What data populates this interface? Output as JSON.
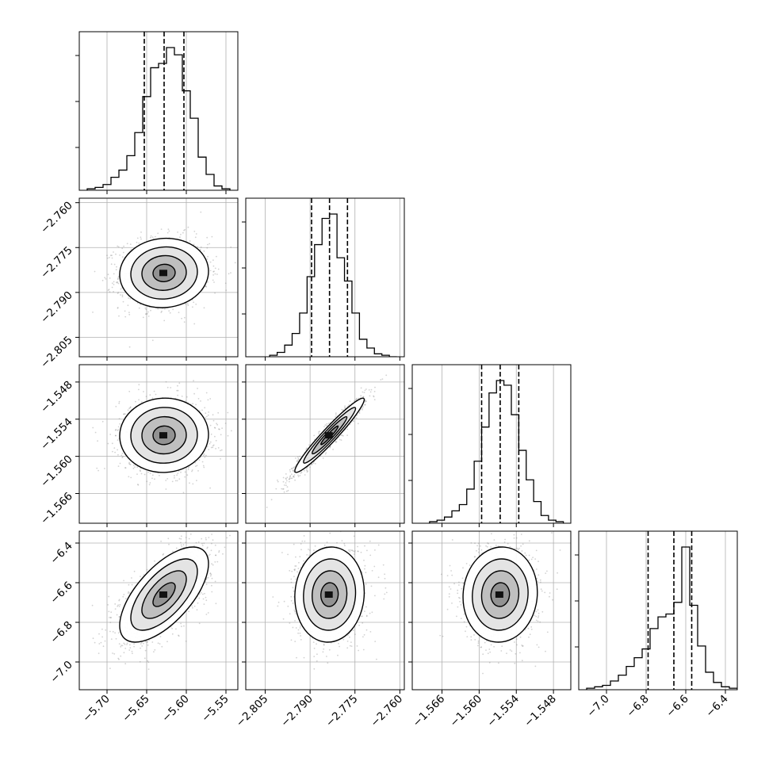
{
  "chart_data": {
    "type": "corner",
    "title": "",
    "parameters": 4,
    "colors": {
      "line": "#000000",
      "grid": "#b0b0b0",
      "scatter": "#7f7f7f"
    },
    "grid": true,
    "quantiles": [
      0.16,
      0.5,
      0.84
    ],
    "variables": [
      {
        "index": 0,
        "range": [
          -5.735,
          -5.535
        ],
        "ticks": [
          -5.7,
          -5.65,
          -5.6,
          -5.55
        ],
        "tick_labels": [
          "−5.70",
          "−5.65",
          "−5.60",
          "−5.55"
        ],
        "quantile_values": [
          -5.653,
          -5.628,
          -5.603
        ],
        "hist": {
          "bin_edges": [
            -5.725,
            -5.715,
            -5.705,
            -5.695,
            -5.685,
            -5.675,
            -5.665,
            -5.655,
            -5.645,
            -5.635,
            -5.625,
            -5.615,
            -5.605,
            -5.595,
            -5.585,
            -5.575,
            -5.565,
            -5.555,
            -5.545
          ],
          "counts": [
            1,
            2,
            4,
            9,
            14,
            24,
            40,
            65,
            85,
            88,
            99,
            94,
            69,
            50,
            23,
            11,
            3,
            1
          ]
        }
      },
      {
        "index": 1,
        "range": [
          -2.8115,
          -2.7585
        ],
        "ticks": [
          -2.805,
          -2.79,
          -2.775,
          -2.76
        ],
        "tick_labels": [
          "−2.805",
          "−2.790",
          "−2.775",
          "−2.760"
        ],
        "quantile_values": [
          -2.7895,
          -2.7835,
          -2.7775
        ],
        "hist": {
          "bin_edges": [
            -2.8035,
            -2.801,
            -2.7985,
            -2.796,
            -2.7935,
            -2.791,
            -2.7885,
            -2.786,
            -2.7835,
            -2.781,
            -2.7785,
            -2.776,
            -2.7735,
            -2.771,
            -2.7685,
            -2.766,
            -2.7635,
            -2.761
          ],
          "counts": [
            1,
            3,
            8,
            16,
            30,
            55,
            77,
            95,
            98,
            68,
            52,
            30,
            12,
            6,
            2,
            1,
            0
          ]
        }
      },
      {
        "index": 2,
        "range": [
          -1.5708,
          -1.5452
        ],
        "ticks": [
          -1.566,
          -1.56,
          -1.554,
          -1.548
        ],
        "tick_labels": [
          "−1.566",
          "−1.560",
          "−1.554",
          "−1.548"
        ],
        "quantile_values": [
          -1.5596,
          -1.5566,
          -1.5536
        ],
        "hist": {
          "bin_edges": [
            -1.568,
            -1.5668,
            -1.5656,
            -1.5644,
            -1.5632,
            -1.562,
            -1.5608,
            -1.5596,
            -1.5584,
            -1.5572,
            -1.556,
            -1.5548,
            -1.5536,
            -1.5524,
            -1.5512,
            -1.55,
            -1.5488,
            -1.5476,
            -1.5464
          ],
          "counts": [
            1,
            2,
            4,
            8,
            12,
            22,
            40,
            62,
            84,
            92,
            89,
            70,
            47,
            28,
            14,
            5,
            2,
            1
          ]
        }
      },
      {
        "index": 3,
        "range": [
          -7.14,
          -6.34
        ],
        "ticks": [
          -7.0,
          -6.8,
          -6.6,
          -6.4
        ],
        "tick_labels": [
          "−7.0",
          "−6.8",
          "−6.6",
          "−6.4"
        ],
        "quantile_values": [
          -6.79,
          -6.66,
          -6.57
        ],
        "hist": {
          "bin_edges": [
            -7.1,
            -7.06,
            -7.02,
            -6.98,
            -6.94,
            -6.9,
            -6.86,
            -6.82,
            -6.78,
            -6.74,
            -6.7,
            -6.66,
            -6.62,
            -6.58,
            -6.54,
            -6.5,
            -6.46,
            -6.42,
            -6.38,
            -6.34
          ],
          "counts": [
            1,
            2,
            3,
            6,
            10,
            16,
            22,
            28,
            42,
            50,
            52,
            60,
            98,
            58,
            30,
            12,
            5,
            2,
            1
          ]
        }
      }
    ],
    "pairs": [
      {
        "x": 0,
        "y": 1,
        "mean": [
          -5.628,
          -2.7835
        ],
        "std": [
          0.028,
          0.0058
        ],
        "rho": 0.05
      },
      {
        "x": 0,
        "y": 2,
        "mean": [
          -5.628,
          -1.5566
        ],
        "std": [
          0.028,
          0.003
        ],
        "rho": 0.02
      },
      {
        "x": 1,
        "y": 2,
        "mean": [
          -2.7835,
          -1.5566
        ],
        "std": [
          0.0058,
          0.003
        ],
        "rho": 0.96
      },
      {
        "x": 0,
        "y": 3,
        "mean": [
          -5.628,
          -6.66
        ],
        "std": [
          0.028,
          0.12
        ],
        "rho": 0.65
      },
      {
        "x": 1,
        "y": 3,
        "mean": [
          -2.7835,
          -6.66
        ],
        "std": [
          0.0058,
          0.12
        ],
        "rho": 0.05
      },
      {
        "x": 2,
        "y": 3,
        "mean": [
          -1.5566,
          -6.66
        ],
        "std": [
          0.003,
          0.12
        ],
        "rho": 0.05
      }
    ]
  }
}
